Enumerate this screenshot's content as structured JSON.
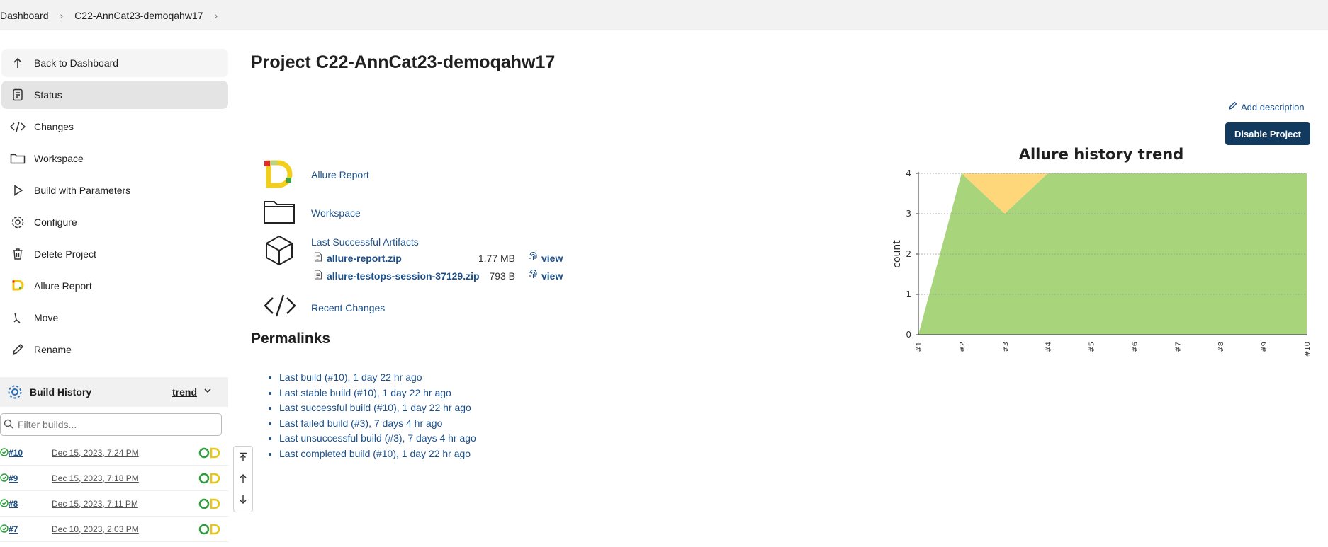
{
  "breadcrumb": {
    "items": [
      "Dashboard",
      "C22-AnnCat23-demoqahw17"
    ]
  },
  "sidebar": {
    "tasks": [
      {
        "label": "Back to Dashboard",
        "icon": "arrow-up-icon"
      },
      {
        "label": "Status",
        "icon": "document-icon"
      },
      {
        "label": "Changes",
        "icon": "code-icon"
      },
      {
        "label": "Workspace",
        "icon": "folder-icon"
      },
      {
        "label": "Build with Parameters",
        "icon": "play-icon"
      },
      {
        "label": "Configure",
        "icon": "gear-icon"
      },
      {
        "label": "Delete Project",
        "icon": "trash-icon"
      },
      {
        "label": "Allure Report",
        "icon": "allure-logo-icon"
      },
      {
        "label": "Move",
        "icon": "move-icon"
      },
      {
        "label": "Rename",
        "icon": "pencil-icon"
      }
    ]
  },
  "build_history": {
    "title": "Build History",
    "trend_label": "trend",
    "filter_placeholder": "Filter builds...",
    "builds": [
      {
        "number": "#10",
        "date": "Dec 15, 2023, 7:24 PM"
      },
      {
        "number": "#9",
        "date": "Dec 15, 2023, 7:18 PM"
      },
      {
        "number": "#8",
        "date": "Dec 15, 2023, 7:11 PM"
      },
      {
        "number": "#7",
        "date": "Dec 10, 2023, 2:03 PM"
      }
    ]
  },
  "main": {
    "title": "Project C22-AnnCat23-demoqahw17",
    "add_description": "Add description",
    "disable_button": "Disable Project",
    "links": {
      "allure_report": "Allure Report",
      "workspace": "Workspace",
      "last_successful_artifacts": "Last Successful Artifacts",
      "recent_changes": "Recent Changes"
    },
    "artifacts": [
      {
        "name": "allure-report.zip",
        "size": "1.77 MB",
        "view": "view"
      },
      {
        "name": "allure-testops-session-37129.zip",
        "size": "793 B",
        "view": "view"
      }
    ],
    "permalinks_title": "Permalinks",
    "permalinks": [
      "Last build (#10), 1 day 22 hr ago",
      "Last stable build (#10), 1 day 22 hr ago",
      "Last successful build (#10), 1 day 22 hr ago",
      "Last failed build (#3), 7 days 4 hr ago",
      "Last unsuccessful build (#3), 7 days 4 hr ago",
      "Last completed build (#10), 1 day 22 hr ago"
    ]
  },
  "chart_data": {
    "type": "area",
    "title": "Allure history trend",
    "xlabel": "",
    "ylabel": "count",
    "categories": [
      "#1",
      "#2",
      "#3",
      "#4",
      "#5",
      "#6",
      "#7",
      "#8",
      "#9",
      "#10"
    ],
    "series": [
      {
        "color": "#a8d47c",
        "values": [
          0,
          4,
          3,
          4,
          4,
          4,
          4,
          4,
          4,
          4
        ]
      },
      {
        "color": "#fdd77a",
        "values": [
          0,
          0,
          1,
          0,
          0,
          0,
          0,
          0,
          0,
          0
        ]
      }
    ],
    "ylim": [
      0,
      4
    ],
    "yticks": [
      0,
      1,
      2,
      3,
      4
    ],
    "stacked": true,
    "grid": true
  },
  "colors": {
    "link": "#1b4f8a",
    "disable_button_bg": "#123a5e",
    "success_green": "#2e9d3e"
  }
}
